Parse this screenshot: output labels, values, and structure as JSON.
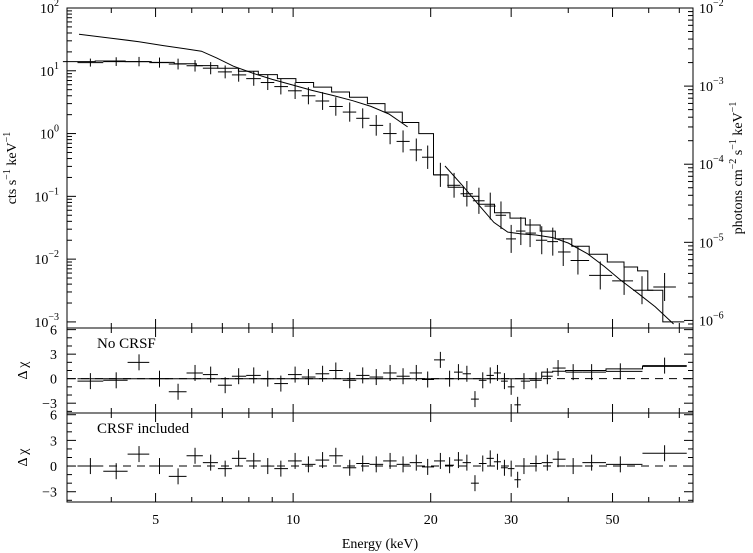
{
  "chart_data": [
    {
      "type": "line",
      "panel": "spectrum",
      "x_scale": "log",
      "y_scale": "log",
      "xlim": [
        3.2,
        75
      ],
      "ylim": [
        0.0008,
        100
      ],
      "y2lim": [
        8e-07,
        0.01
      ],
      "xlabel": "Energy (keV)",
      "ylabel": "cts s^-1 keV^-1",
      "y2label": "photons cm^-2 s^-1 keV^-1",
      "yticks": [
        {
          "v": 0.001,
          "base": "10",
          "exp": "−3"
        },
        {
          "v": 0.01,
          "base": "10",
          "exp": "−2"
        },
        {
          "v": 0.1,
          "base": "10",
          "exp": "−1"
        },
        {
          "v": 1,
          "base": "10",
          "exp": "0"
        },
        {
          "v": 10,
          "base": "10",
          "exp": "1"
        },
        {
          "v": 100,
          "base": "10",
          "exp": "2"
        }
      ],
      "y2ticks": [
        {
          "v": 1e-06,
          "base": "10",
          "exp": "−6"
        },
        {
          "v": 1e-05,
          "base": "10",
          "exp": "−5"
        },
        {
          "v": 0.0001,
          "base": "10",
          "exp": "−4"
        },
        {
          "v": 0.001,
          "base": "10",
          "exp": "−3"
        },
        {
          "v": 0.01,
          "base": "10",
          "exp": "−2"
        }
      ],
      "series": [
        {
          "kind": "counts-data",
          "x": [
            3.6,
            4.1,
            4.6,
            5.1,
            5.6,
            6.1,
            6.6,
            7.1,
            7.6,
            8.2,
            8.8,
            9.4,
            10.1,
            10.8,
            11.6,
            12.4,
            13.3,
            14.2,
            15.2,
            16.3,
            17.4,
            18.6,
            19.7,
            21.0,
            22.5,
            24.0,
            25.5,
            27.0,
            28.5,
            30.0,
            31.5,
            33.0,
            35.0,
            37.0,
            39.0,
            42.0,
            47.0,
            53.0,
            58.0,
            65.0
          ],
          "y": [
            13.5,
            14.0,
            14.0,
            13.5,
            12.8,
            12.0,
            11.0,
            9.6,
            8.6,
            7.5,
            6.5,
            5.6,
            4.8,
            4.0,
            3.3,
            2.7,
            2.2,
            1.75,
            1.35,
            1.0,
            0.75,
            0.55,
            0.42,
            0.22,
            0.15,
            0.11,
            0.085,
            0.07,
            0.05,
            0.021,
            0.028,
            0.026,
            0.02,
            0.019,
            0.013,
            0.0095,
            0.0055,
            0.0045,
            0.0032,
            0.0036
          ]
        },
        {
          "kind": "model-counts",
          "x": [
            3.4,
            4.0,
            4.6,
            5.2,
            5.8,
            6.5,
            7.2,
            8.0,
            8.8,
            9.7,
            10.6,
            11.6,
            12.7,
            13.9,
            15.2,
            16.6,
            18.1,
            19.6,
            21.0,
            22.7,
            24.5,
            26.5,
            28.7,
            31.0,
            33.5,
            36.0,
            39.0,
            42.5,
            46.5,
            51.0,
            55.0,
            58.5,
            61.0,
            68.0
          ],
          "y": [
            14.0,
            14.3,
            14.0,
            13.6,
            12.9,
            12.1,
            11.0,
            9.8,
            8.7,
            7.5,
            6.5,
            5.5,
            4.6,
            3.8,
            3.0,
            2.2,
            1.5,
            1.0,
            0.22,
            0.14,
            0.1,
            0.075,
            0.055,
            0.045,
            0.035,
            0.028,
            0.021,
            0.016,
            0.012,
            0.009,
            0.0075,
            0.0065,
            0.0032,
            0.001
          ]
        },
        {
          "kind": "unfolded-model",
          "axis": "right",
          "x": [
            3.4,
            4.0,
            4.6,
            5.2,
            5.8,
            6.3,
            6.8,
            7.4,
            8.2,
            9.0,
            10.0,
            11.0,
            12.2,
            13.5,
            14.8,
            16.2,
            17.8,
            19.5,
            21.5,
            23.5,
            25.5,
            27.5,
            29.5,
            31.5,
            34.0,
            37.0,
            40.0,
            44.0,
            48.0,
            52.0,
            57.0,
            62.0,
            68.0
          ],
          "y": [
            0.0046,
            0.0041,
            0.0037,
            0.0033,
            0.003,
            0.0028,
            0.0023,
            0.0018,
            0.00145,
            0.00122,
            0.00103,
            0.00088,
            0.00076,
            0.00065,
            0.00055,
            0.00044,
            0.0003,
            0.00017,
            9.5e-05,
            5.3e-05,
            3e-05,
            1.8e-05,
            1.35e-05,
            1.28e-05,
            1.24e-05,
            1.15e-05,
            9.8e-06,
            7.2e-06,
            4.9e-06,
            3.3e-06,
            2.2e-06,
            1.5e-06,
            9e-07
          ]
        }
      ]
    },
    {
      "type": "scatter",
      "panel": "residuals-no-crsf",
      "label": "No CRSF",
      "ylabel": "Δ χ",
      "ylim": [
        -4.2,
        6.2
      ],
      "yticks": [
        -3,
        0,
        3,
        6
      ],
      "ytick_labels": [
        "−3",
        "0",
        "3",
        "6"
      ],
      "x": [
        3.6,
        4.1,
        4.6,
        5.1,
        5.6,
        6.1,
        6.6,
        7.1,
        7.6,
        8.2,
        8.8,
        9.4,
        10.1,
        10.8,
        11.6,
        12.4,
        13.3,
        14.2,
        15.2,
        16.3,
        17.4,
        18.6,
        19.7,
        21.0,
        22.0,
        23.0,
        24.0,
        25.0,
        26.0,
        27.0,
        28.0,
        29.0,
        30.0,
        31.0,
        32.0,
        34.0,
        36.0,
        38.0,
        41.0,
        45.0,
        52.0,
        65.0
      ],
      "y": [
        -0.3,
        -0.2,
        2.0,
        0.0,
        -1.6,
        0.7,
        0.5,
        -0.8,
        0.3,
        0.4,
        0.0,
        -0.6,
        0.5,
        0.2,
        0.6,
        1.0,
        -0.2,
        0.4,
        0.2,
        0.7,
        0.3,
        0.7,
        -0.1,
        2.3,
        0.0,
        0.8,
        0.6,
        -2.5,
        -0.2,
        0.4,
        0.7,
        -0.3,
        -1.0,
        -3.2,
        -0.3,
        -0.2,
        0.3,
        1.3,
        0.8,
        0.8,
        0.9,
        1.6
      ],
      "model_y": [
        0,
        0,
        0,
        0,
        0,
        0,
        0,
        0,
        0,
        0,
        0,
        0,
        0,
        0,
        0,
        0,
        0,
        0,
        0,
        0,
        0,
        0,
        0,
        0,
        0,
        0,
        0,
        0,
        0,
        0,
        0,
        0,
        0,
        0,
        0,
        0,
        0.8,
        0.9,
        1.0,
        1.0,
        1.2,
        1.5
      ]
    },
    {
      "type": "scatter",
      "panel": "residuals-crsf-included",
      "label": "CRSF included",
      "ylabel": "Δ χ",
      "ylim": [
        -4.2,
        6.2
      ],
      "yticks": [
        -3,
        0,
        3,
        6
      ],
      "ytick_labels": [
        "−3",
        "0",
        "3",
        "6"
      ],
      "x": [
        3.6,
        4.1,
        4.6,
        5.1,
        5.6,
        6.1,
        6.6,
        7.1,
        7.6,
        8.2,
        8.8,
        9.4,
        10.1,
        10.8,
        11.6,
        12.4,
        13.3,
        14.2,
        15.2,
        16.3,
        17.4,
        18.6,
        19.7,
        21.0,
        22.0,
        23.0,
        24.0,
        25.0,
        26.0,
        27.0,
        28.0,
        29.0,
        30.0,
        31.0,
        32.0,
        34.0,
        36.0,
        38.0,
        41.0,
        45.0,
        52.0,
        65.0
      ],
      "y": [
        0.0,
        -0.6,
        1.4,
        0.0,
        -1.2,
        1.2,
        0.4,
        -0.3,
        0.9,
        0.6,
        0.0,
        -0.3,
        0.6,
        0.2,
        0.7,
        1.2,
        -0.2,
        0.3,
        0.2,
        0.6,
        0.2,
        0.4,
        -0.1,
        0.6,
        0.1,
        0.7,
        0.4,
        -2.0,
        0.3,
        0.9,
        0.5,
        -0.2,
        -0.3,
        -1.6,
        0.0,
        0.3,
        0.4,
        0.8,
        0.0,
        0.4,
        0.2,
        1.5
      ]
    }
  ]
}
